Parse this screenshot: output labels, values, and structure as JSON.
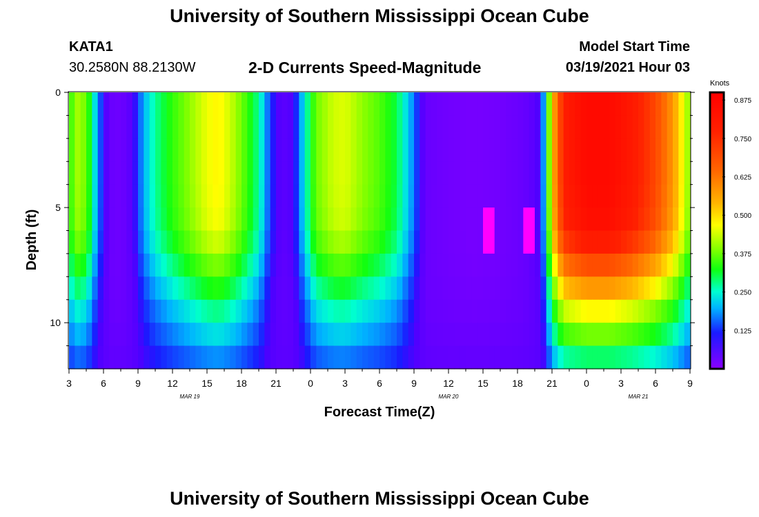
{
  "header": {
    "title": "University of Southern Mississippi Ocean Cube",
    "station": "KATA1",
    "coords": "30.2580N 88.2130W",
    "plot_title": "2-D Currents Speed-Magnitude",
    "model_label": "Model Start Time",
    "model_time": "03/19/2021 Hour 03"
  },
  "footer": {
    "title": "University of Southern Mississippi Ocean Cube"
  },
  "chart_data": {
    "type": "heatmap",
    "title": "2-D Currents Speed-Magnitude",
    "xlabel": "Forecast Time(Z)",
    "ylabel": "Depth (ft)",
    "x_hours": [
      3,
      6,
      9,
      12,
      15,
      18,
      21,
      24,
      27,
      30,
      33,
      36,
      39,
      42,
      45,
      48,
      51,
      54,
      57
    ],
    "x_tick_labels": [
      "3",
      "6",
      "9",
      "12",
      "15",
      "18",
      "21",
      "0",
      "3",
      "6",
      "9",
      "12",
      "15",
      "18",
      "21",
      "0",
      "3",
      "6",
      "9"
    ],
    "xlim_hours": [
      3,
      57
    ],
    "date_labels": [
      {
        "hour": 13.5,
        "text": "MAR 19"
      },
      {
        "hour": 36,
        "text": "MAR 20"
      },
      {
        "hour": 52.5,
        "text": "MAR 21"
      }
    ],
    "y_ticks": [
      0,
      5,
      10
    ],
    "ylim": [
      0,
      12
    ],
    "y_reversed": true,
    "colorbar": {
      "label": "Knots",
      "ticks": [
        "0.875",
        "0.750",
        "0.625",
        "0.500",
        "0.375",
        "0.250",
        "0.125"
      ],
      "tick_values": [
        0.875,
        0.75,
        0.625,
        0.5,
        0.375,
        0.25,
        0.125
      ],
      "range": [
        0.0,
        0.9
      ]
    },
    "surface_speed_knots": [
      [
        3,
        0.3
      ],
      [
        3.5,
        0.42
      ],
      [
        4.5,
        0.38
      ],
      [
        5.5,
        0.18
      ],
      [
        6.5,
        0.06
      ],
      [
        7.5,
        0.05
      ],
      [
        8.5,
        0.09
      ],
      [
        9.5,
        0.2
      ],
      [
        10.5,
        0.27
      ],
      [
        12,
        0.34
      ],
      [
        13.5,
        0.4
      ],
      [
        15,
        0.46
      ],
      [
        16,
        0.48
      ],
      [
        17,
        0.44
      ],
      [
        18,
        0.38
      ],
      [
        19.5,
        0.27
      ],
      [
        20.5,
        0.14
      ],
      [
        21.5,
        0.08
      ],
      [
        22.5,
        0.1
      ],
      [
        23.5,
        0.24
      ],
      [
        24.5,
        0.38
      ],
      [
        26,
        0.44
      ],
      [
        27,
        0.45
      ],
      [
        28.5,
        0.4
      ],
      [
        30,
        0.36
      ],
      [
        31.5,
        0.3
      ],
      [
        33,
        0.17
      ],
      [
        34,
        0.06
      ],
      [
        36,
        0.045
      ],
      [
        38,
        0.035
      ],
      [
        40,
        0.04
      ],
      [
        42,
        0.055
      ],
      [
        43,
        0.07
      ],
      [
        44,
        0.11
      ],
      [
        44.5,
        0.26
      ],
      [
        45,
        0.52
      ],
      [
        46,
        0.78
      ],
      [
        48,
        0.86
      ],
      [
        50,
        0.86
      ],
      [
        52,
        0.8
      ],
      [
        54,
        0.7
      ],
      [
        55.5,
        0.58
      ],
      [
        56.5,
        0.45
      ],
      [
        57,
        0.38
      ]
    ],
    "depth_profile": [
      [
        0,
        1.0
      ],
      [
        2,
        1.0
      ],
      [
        4,
        1.0
      ],
      [
        6,
        0.97
      ],
      [
        7,
        0.86
      ],
      [
        8,
        0.72
      ],
      [
        9,
        0.58
      ],
      [
        10,
        0.45
      ],
      [
        11,
        0.34
      ],
      [
        11.5,
        0.27
      ],
      [
        12,
        0.22
      ]
    ],
    "deep_offset_knots": 0.04,
    "anomalies": [
      {
        "hour": 39.7,
        "depth_from": 5.5,
        "depth_to": 6.5,
        "speed": 0.0
      },
      {
        "hour": 42.8,
        "depth_from": 5.5,
        "depth_to": 6.5,
        "speed": 0.0
      }
    ]
  }
}
